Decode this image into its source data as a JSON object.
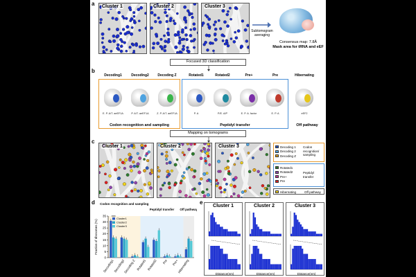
{
  "panel_labels": {
    "a": "a",
    "b": "b",
    "c": "c",
    "d": "d",
    "e": "e"
  },
  "panel_a": {
    "clusters": [
      "Cluster 1",
      "Cluster 2",
      "Cluster 3"
    ],
    "arrow_label": "Subtomogram averaging",
    "map_caption_line1": "Consensus map: 7.8Å",
    "map_caption_line2": "Mask area for tRNA and eEF"
  },
  "flow": {
    "step1": "Focused 3D classification",
    "step2": "Mapping on tomograms"
  },
  "panel_b": {
    "classes": [
      {
        "name": "Decoding1",
        "sub": "E. P. A/T. aeEF1A",
        "color": "#2b59c3"
      },
      {
        "name": "Decoding2",
        "sub": "P. A/T. aeEF1A",
        "color": "#4fa3e0"
      },
      {
        "name": "Decoding Z",
        "sub": "Z. P. A/T. aeEF1A",
        "color": "#39b54a"
      },
      {
        "name": "Rotated1",
        "sub": "P. A",
        "color": "#2b59c3"
      },
      {
        "name": "Rotated2",
        "sub": "P/E. A/P",
        "color": "#1f8aa0"
      },
      {
        "name": "Pre+",
        "sub": "E. P. A. factor",
        "color": "#7b2fa8"
      },
      {
        "name": "Pre",
        "sub": "E. P. A",
        "color": "#c0392b"
      },
      {
        "name": "Hibernating",
        "sub": "eEF2",
        "color": "#e6c619"
      }
    ],
    "groups": [
      "Codon recognition and sampling",
      "Peptidyl transfer",
      "Off pathway"
    ]
  },
  "panel_c": {
    "clusters": [
      "Cluster 1",
      "Cluster 2",
      "Cluster 3"
    ],
    "legend_group1": [
      {
        "label": "Decoding 1",
        "color": "#2b59c3"
      },
      {
        "label": "Decoding 2",
        "color": "#4fa3e0"
      },
      {
        "label": "Decoding Z",
        "color": "#e0a21b"
      }
    ],
    "legend_group1_title": "Codon recognition/ sampling",
    "legend_group2": [
      {
        "label": "Rotated1",
        "color": "#2f7d2f"
      },
      {
        "label": "Rotated2",
        "color": "#8e44ad"
      },
      {
        "label": "Pre+",
        "color": "#c0399b"
      },
      {
        "label": "Pre",
        "color": "#e02020"
      }
    ],
    "legend_group2_title": "Peptidyl transfer",
    "legend_hib": {
      "label": "Hibernating",
      "color": "#f1d21b"
    },
    "legend_off": "Off pathway"
  },
  "chart_data": [
    {
      "type": "bar",
      "title": "",
      "ylabel": "Fraction of ribosomes (%)",
      "ylim": [
        0,
        35
      ],
      "yticks": [
        "0",
        "5",
        "10",
        "15",
        "20",
        "25",
        "30",
        "35"
      ],
      "categories": [
        "Decoding1",
        "Decoding2",
        "Decoding Z",
        "Rotated1",
        "Rotated2",
        "Pre",
        "Pre+",
        "Hibernating"
      ],
      "groups": [
        "Codon recognition and sampling",
        "Peptidyl transfer",
        "Off pathway"
      ],
      "series": [
        {
          "name": "Cluster1",
          "color": "#2b59c3",
          "values": [
            31,
            17,
            1,
            13,
            15,
            1,
            1,
            7
          ]
        },
        {
          "name": "Cluster2",
          "color": "#2aa3c7",
          "values": [
            17,
            16,
            2,
            16,
            14,
            2,
            2,
            16
          ]
        },
        {
          "name": "Cluster3",
          "color": "#54c9d6",
          "values": [
            16,
            15,
            1,
            9,
            23,
            1,
            1,
            14
          ]
        }
      ],
      "annotation": "***"
    },
    {
      "type": "bar",
      "title": "Cluster 1",
      "xlabel": "Distance(nm)",
      "ylabel": "",
      "note": "nearest-neighbour distance histograms; top row and bottom (zoomed) row",
      "series": [
        {
          "name": "Cluster 1",
          "values": [
            2,
            9,
            10,
            8,
            6,
            5,
            5,
            4,
            4,
            3,
            3,
            3,
            2,
            2,
            2,
            2,
            2,
            2,
            1,
            1
          ]
        }
      ]
    },
    {
      "type": "bar",
      "title": "Cluster 2",
      "xlabel": "Distance(nm)",
      "ylabel": "",
      "series": [
        {
          "name": "Cluster 2",
          "values": [
            1,
            3,
            10,
            8,
            5,
            4,
            3,
            3,
            2,
            2,
            2,
            2,
            2,
            1,
            1,
            1,
            1,
            1,
            1,
            1
          ]
        }
      ]
    },
    {
      "type": "bar",
      "title": "Cluster 3",
      "xlabel": "Distance(nm)",
      "ylabel": "",
      "series": [
        {
          "name": "Cluster 3",
          "values": [
            1,
            4,
            10,
            9,
            7,
            6,
            5,
            4,
            3,
            3,
            3,
            2,
            2,
            2,
            2,
            2,
            1,
            1,
            1,
            1
          ]
        }
      ]
    }
  ]
}
